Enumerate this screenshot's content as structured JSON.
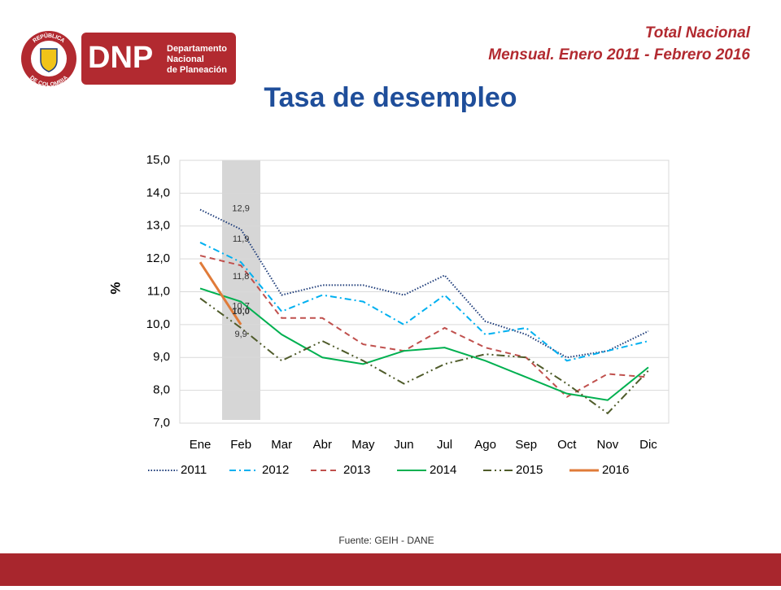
{
  "header": {
    "seal_top": "REPÚBLICA",
    "seal_bottom": "DE COLOMBIA",
    "logo": "DNP",
    "logo_lines": [
      "Departamento",
      "Nacional",
      "de Planeación"
    ],
    "subtitle_lines": [
      "Total Nacional",
      "Mensual. Enero 2011 -  Febrero 2016"
    ]
  },
  "chart_data": {
    "type": "line",
    "title": "Tasa de desempleo",
    "y_label": "%",
    "categories": [
      "Ene",
      "Feb",
      "Mar",
      "Abr",
      "May",
      "Jun",
      "Jul",
      "Ago",
      "Sep",
      "Oct",
      "Nov",
      "Dic"
    ],
    "ylim": [
      7,
      15
    ],
    "yticks": [
      {
        "value": 7,
        "label": "7,0"
      },
      {
        "value": 8,
        "label": "8,0"
      },
      {
        "value": 9,
        "label": "9,0"
      },
      {
        "value": 10,
        "label": "10,0"
      },
      {
        "value": 11,
        "label": "11,0"
      },
      {
        "value": 12,
        "label": "12,0"
      },
      {
        "value": 13,
        "label": "13,0"
      },
      {
        "value": 14,
        "label": "14,0"
      },
      {
        "value": 15,
        "label": "15,0"
      }
    ],
    "grid": true,
    "legend": "bottom",
    "series": [
      {
        "name": "2011",
        "color": "#1f3d7a",
        "dash": "dotted",
        "values": [
          13.5,
          12.9,
          10.9,
          11.2,
          11.2,
          10.9,
          11.5,
          10.1,
          9.7,
          9.0,
          9.2,
          9.8
        ],
        "value_labels": [
          null,
          "12,9",
          null,
          null,
          null,
          null,
          null,
          null,
          null,
          null,
          null,
          null
        ]
      },
      {
        "name": "2012",
        "color": "#00b0f0",
        "dash": "dash-dot",
        "values": [
          12.5,
          11.9,
          10.4,
          10.9,
          10.7,
          10.0,
          10.9,
          9.7,
          9.9,
          8.9,
          9.2,
          9.5
        ],
        "value_labels": [
          null,
          "11,9",
          null,
          null,
          null,
          null,
          null,
          null,
          null,
          null,
          null,
          null
        ]
      },
      {
        "name": "2013",
        "color": "#c0504d",
        "dash": "dashed",
        "values": [
          12.1,
          11.8,
          10.2,
          10.2,
          9.4,
          9.2,
          9.9,
          9.3,
          9.0,
          7.8,
          8.5,
          8.4
        ],
        "value_labels": [
          null,
          "11,8",
          null,
          null,
          null,
          null,
          null,
          null,
          null,
          null,
          null,
          null
        ]
      },
      {
        "name": "2014",
        "color": "#00b050",
        "dash": "solid",
        "values": [
          11.1,
          10.7,
          9.7,
          9.0,
          8.8,
          9.2,
          9.3,
          8.9,
          8.4,
          7.9,
          7.7,
          8.7
        ],
        "value_labels": [
          null,
          "10,7",
          null,
          null,
          null,
          null,
          null,
          null,
          null,
          null,
          null,
          null
        ]
      },
      {
        "name": "2015",
        "color": "#4f5b2a",
        "dash": "dash-dot-dot",
        "values": [
          10.8,
          9.9,
          8.9,
          9.5,
          8.9,
          8.2,
          8.8,
          9.1,
          9.0,
          8.2,
          7.3,
          8.6
        ],
        "value_labels": [
          null,
          "9,9",
          null,
          null,
          null,
          null,
          null,
          null,
          null,
          null,
          null,
          null
        ]
      },
      {
        "name": "2016",
        "color": "#e07b39",
        "dash": "solid-thick",
        "values": [
          11.9,
          10.0,
          null,
          null,
          null,
          null,
          null,
          null,
          null,
          null,
          null,
          null
        ],
        "value_labels": [
          null,
          "10,0",
          null,
          null,
          null,
          null,
          null,
          null,
          null,
          null,
          null,
          null
        ]
      }
    ]
  },
  "footer": {
    "source": "Fuente: GEIH - DANE"
  }
}
